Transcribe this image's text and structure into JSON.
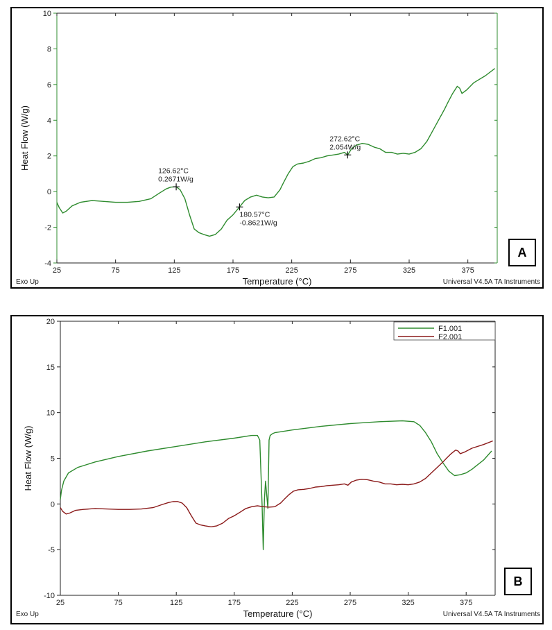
{
  "chart_data": [
    {
      "type": "line",
      "panel_label": "A",
      "xlabel": "Temperature (°C)",
      "ylabel": "Heat Flow (W/g)",
      "xlim": [
        25,
        400
      ],
      "ylim": [
        -4,
        10
      ],
      "xticks": [
        25,
        75,
        125,
        175,
        225,
        275,
        325,
        375
      ],
      "yticks": [
        -4,
        -2,
        0,
        2,
        4,
        6,
        8,
        10
      ],
      "footer_left": "Exo Up",
      "footer_right": "Universal V4.5A TA Instruments",
      "colors": {
        "axis": "#2e8b2e",
        "series": "#2e8b2e"
      },
      "series": [
        {
          "x": [
            25,
            27,
            30,
            33,
            38,
            45,
            55,
            65,
            75,
            85,
            95,
            105,
            112,
            118,
            122,
            126.62,
            130,
            134,
            138,
            142,
            146,
            150,
            155,
            160,
            165,
            170,
            175,
            180.57,
            185,
            190,
            195,
            200,
            205,
            210,
            215,
            218,
            222,
            226,
            230,
            235,
            240,
            245,
            250,
            255,
            260,
            265,
            270,
            272.62,
            276,
            280,
            285,
            290,
            295,
            300,
            305,
            310,
            315,
            320,
            325,
            330,
            335,
            340,
            345,
            350,
            355,
            358,
            362,
            366,
            368,
            370,
            374,
            380,
            390,
            398
          ],
          "y": [
            -0.6,
            -0.9,
            -1.2,
            -1.1,
            -0.8,
            -0.6,
            -0.5,
            -0.55,
            -0.6,
            -0.6,
            -0.55,
            -0.4,
            -0.1,
            0.15,
            0.25,
            0.27,
            0.1,
            -0.4,
            -1.3,
            -2.1,
            -2.3,
            -2.4,
            -2.5,
            -2.4,
            -2.1,
            -1.6,
            -1.3,
            -0.86,
            -0.5,
            -0.3,
            -0.2,
            -0.3,
            -0.35,
            -0.3,
            0.1,
            0.5,
            1.0,
            1.4,
            1.55,
            1.6,
            1.7,
            1.85,
            1.9,
            2.0,
            2.05,
            2.1,
            2.2,
            2.05,
            2.4,
            2.6,
            2.7,
            2.65,
            2.5,
            2.4,
            2.2,
            2.2,
            2.1,
            2.15,
            2.1,
            2.2,
            2.4,
            2.8,
            3.4,
            4.0,
            4.6,
            5.0,
            5.5,
            5.9,
            5.8,
            5.5,
            5.7,
            6.1,
            6.5,
            6.9
          ]
        }
      ],
      "annotations": [
        {
          "x": 126.62,
          "y": 0.2671,
          "label_temp": "126.62°C",
          "label_value": "0.2671W/g",
          "position": "above"
        },
        {
          "x": 180.57,
          "y": -0.8621,
          "label_temp": "180.57°C",
          "label_value": "-0.8621W/g",
          "position": "below"
        },
        {
          "x": 272.62,
          "y": 2.054,
          "label_temp": "272.62°C",
          "label_value": "2.054W/g",
          "position": "above"
        }
      ]
    },
    {
      "type": "line",
      "panel_label": "B",
      "xlabel": "Temperature (°C)",
      "ylabel": "Heat Flow (W/g)",
      "xlim": [
        25,
        400
      ],
      "ylim": [
        -10,
        20
      ],
      "xticks": [
        25,
        75,
        125,
        175,
        225,
        275,
        325,
        375
      ],
      "yticks": [
        -10,
        -5,
        0,
        5,
        10,
        15,
        20
      ],
      "footer_left": "Exo Up",
      "footer_right": "Universal V4.5A TA Instruments",
      "legend_position": "top-right",
      "colors": {
        "axis": "#222222"
      },
      "series": [
        {
          "name": "F1.001",
          "color": "#2e8b2e",
          "x": [
            25,
            26,
            28,
            32,
            40,
            55,
            75,
            100,
            125,
            150,
            175,
            190,
            195,
            197,
            199,
            200,
            201,
            202,
            203,
            204,
            205,
            206,
            207,
            208,
            210,
            215,
            225,
            250,
            275,
            300,
            320,
            330,
            335,
            340,
            345,
            350,
            355,
            360,
            365,
            370,
            375,
            380,
            390,
            397
          ],
          "y": [
            0.5,
            1.5,
            2.5,
            3.4,
            4.0,
            4.6,
            5.2,
            5.8,
            6.3,
            6.8,
            7.2,
            7.5,
            7.5,
            7.0,
            0.0,
            -5.0,
            0.5,
            2.5,
            1.0,
            -0.5,
            7.0,
            7.5,
            7.6,
            7.7,
            7.8,
            7.9,
            8.1,
            8.5,
            8.8,
            9.0,
            9.1,
            9.0,
            8.6,
            7.8,
            6.8,
            5.5,
            4.5,
            3.6,
            3.1,
            3.2,
            3.4,
            3.8,
            4.8,
            5.8
          ]
        },
        {
          "name": "F2.001",
          "color": "#8b1a1a",
          "x": [
            25,
            27,
            30,
            33,
            38,
            45,
            55,
            65,
            75,
            85,
            95,
            105,
            112,
            118,
            122,
            126,
            130,
            134,
            138,
            142,
            146,
            150,
            155,
            160,
            165,
            170,
            175,
            180,
            185,
            190,
            195,
            200,
            205,
            210,
            215,
            218,
            222,
            226,
            230,
            235,
            240,
            245,
            250,
            255,
            260,
            265,
            270,
            273,
            276,
            280,
            285,
            290,
            295,
            300,
            305,
            310,
            315,
            320,
            325,
            330,
            335,
            340,
            345,
            350,
            355,
            358,
            362,
            366,
            368,
            370,
            374,
            380,
            390,
            398
          ],
          "y": [
            -0.4,
            -0.8,
            -1.1,
            -1.0,
            -0.7,
            -0.6,
            -0.5,
            -0.55,
            -0.6,
            -0.6,
            -0.55,
            -0.4,
            -0.1,
            0.15,
            0.25,
            0.27,
            0.1,
            -0.4,
            -1.3,
            -2.1,
            -2.3,
            -2.4,
            -2.5,
            -2.4,
            -2.1,
            -1.6,
            -1.3,
            -0.9,
            -0.5,
            -0.3,
            -0.2,
            -0.3,
            -0.35,
            -0.3,
            0.1,
            0.5,
            1.0,
            1.4,
            1.55,
            1.6,
            1.7,
            1.85,
            1.9,
            2.0,
            2.05,
            2.1,
            2.2,
            2.05,
            2.4,
            2.6,
            2.7,
            2.65,
            2.5,
            2.4,
            2.2,
            2.2,
            2.1,
            2.15,
            2.1,
            2.2,
            2.4,
            2.8,
            3.4,
            4.0,
            4.6,
            5.0,
            5.5,
            5.9,
            5.8,
            5.5,
            5.7,
            6.1,
            6.5,
            6.9
          ]
        }
      ]
    }
  ]
}
